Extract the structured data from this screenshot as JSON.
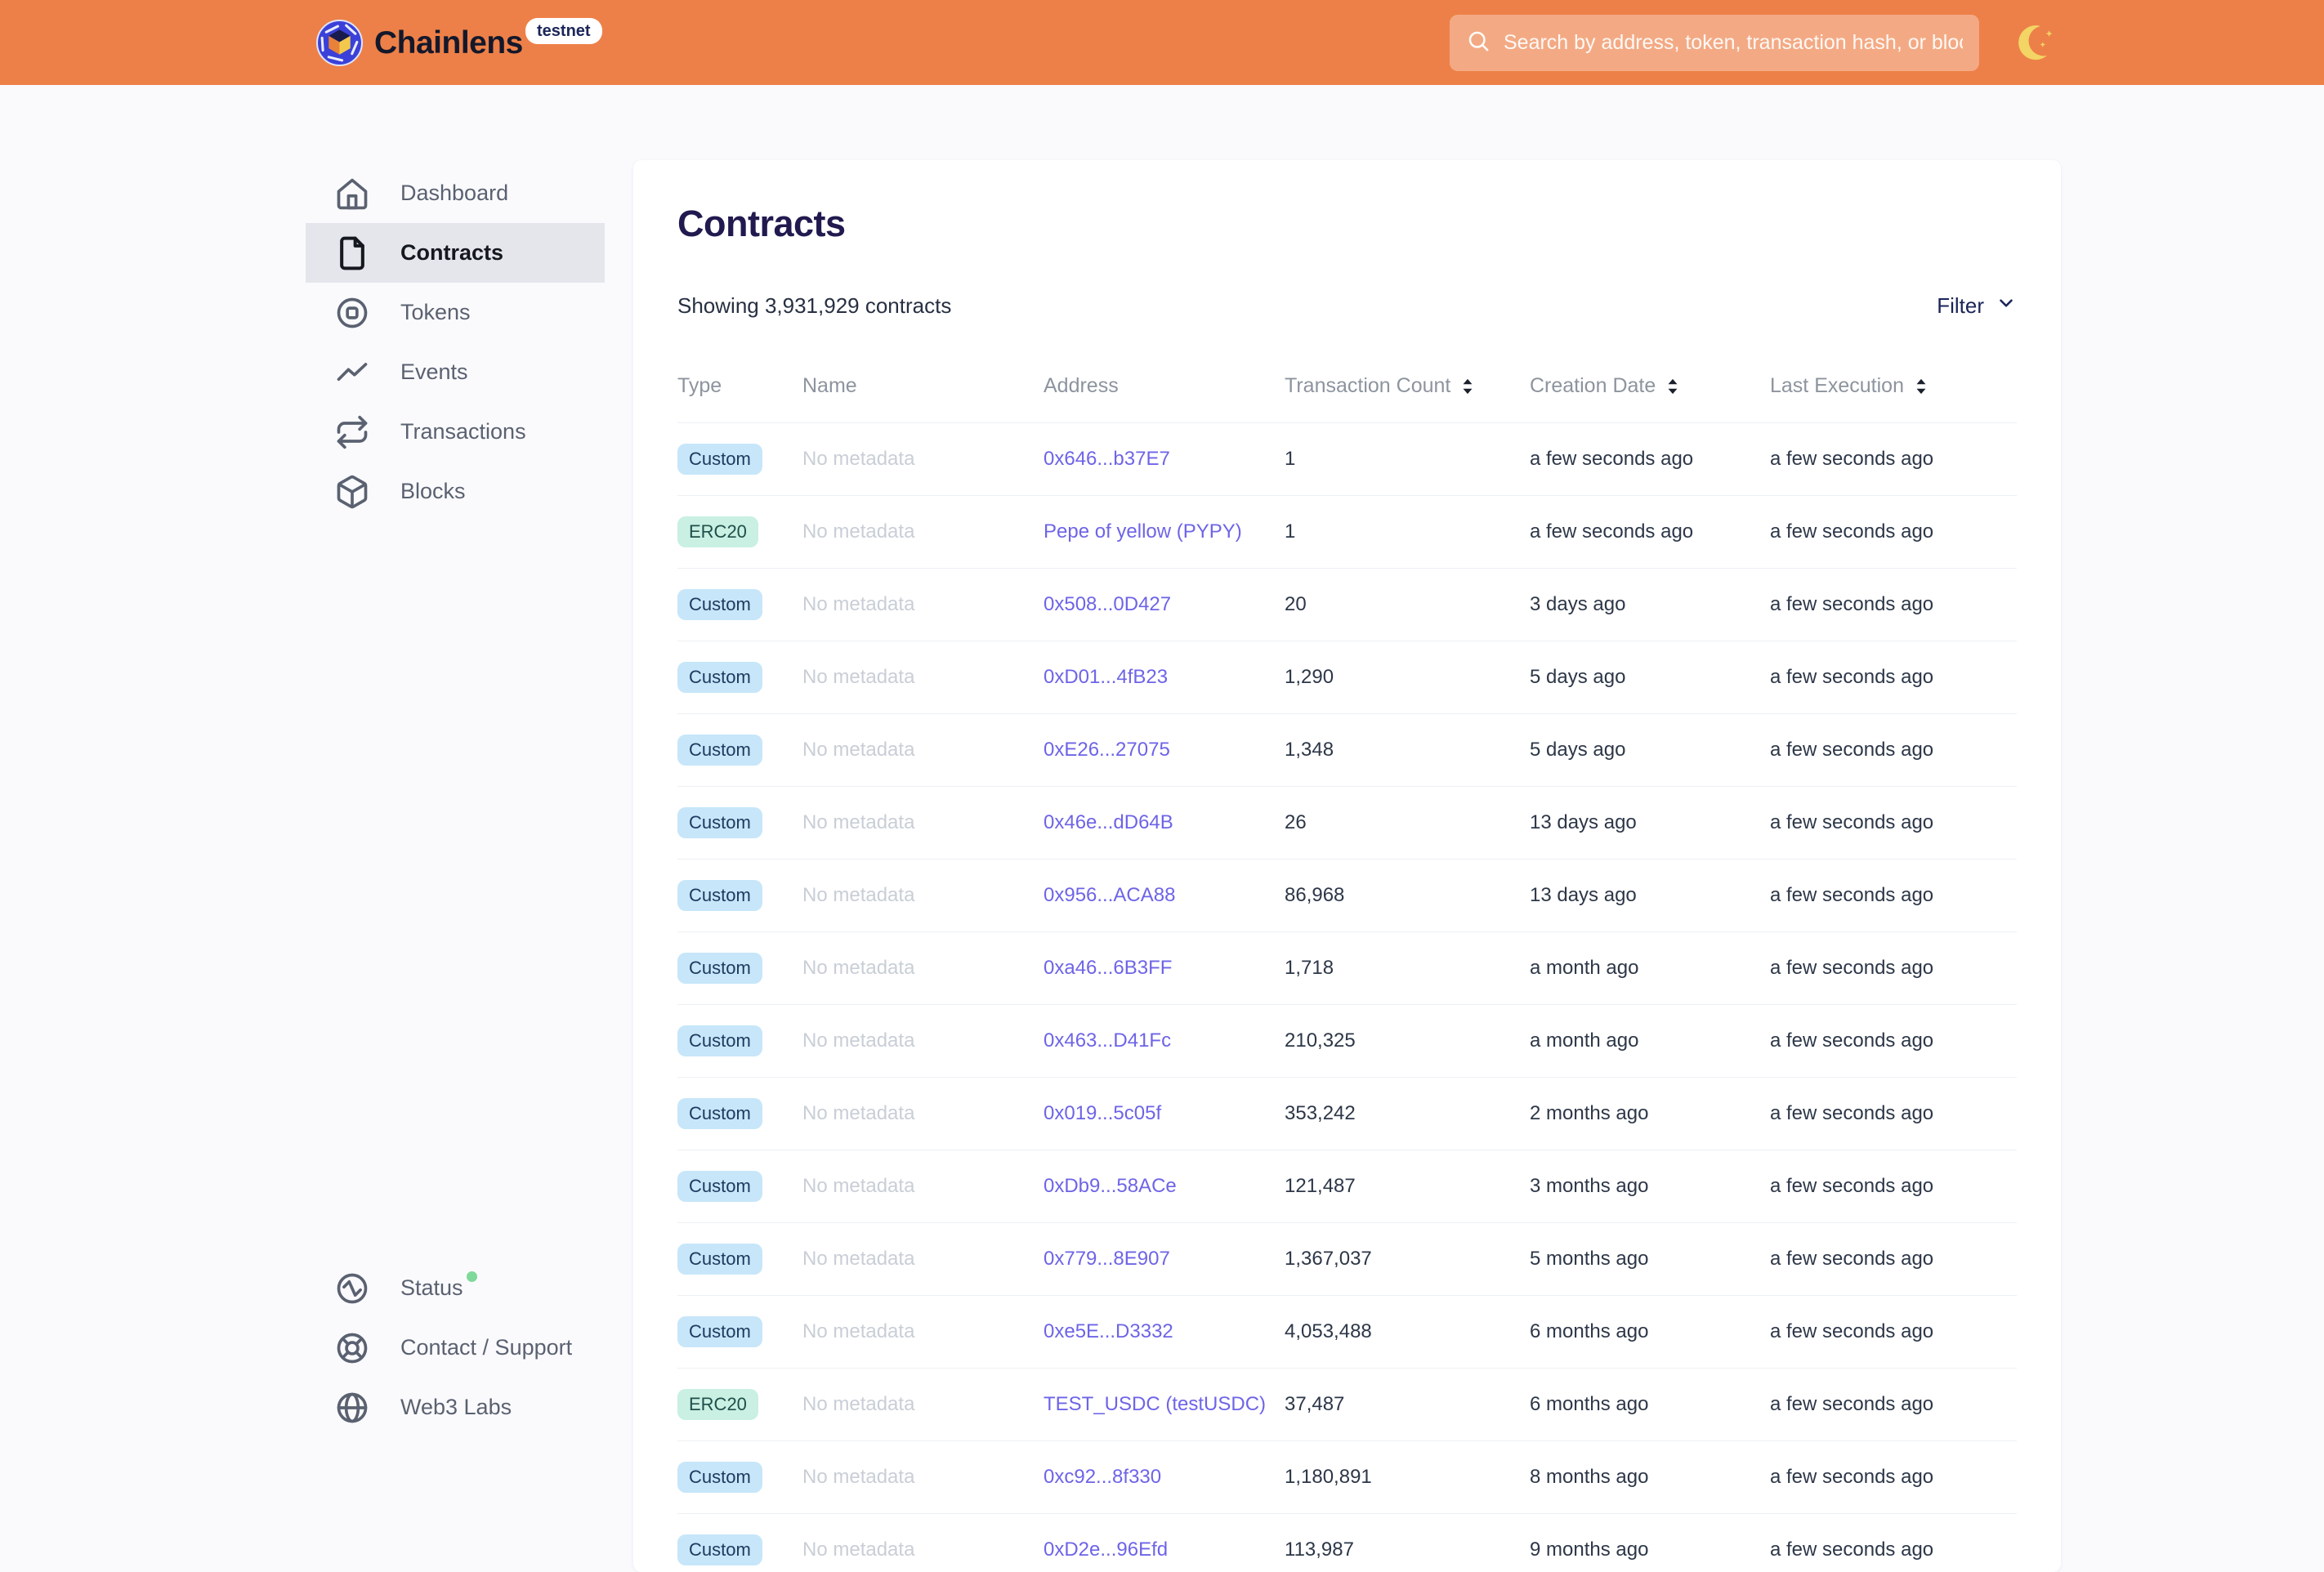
{
  "header": {
    "brand": "Chainlens",
    "network_badge": "testnet",
    "search_placeholder": "Search by address, token, transaction hash, or block number"
  },
  "sidebar": {
    "items": [
      {
        "label": "Dashboard",
        "icon": "home-icon",
        "active": false
      },
      {
        "label": "Contracts",
        "icon": "document-icon",
        "active": true
      },
      {
        "label": "Tokens",
        "icon": "token-icon",
        "active": false
      },
      {
        "label": "Events",
        "icon": "activity-icon",
        "active": false
      },
      {
        "label": "Transactions",
        "icon": "repeat-icon",
        "active": false
      },
      {
        "label": "Blocks",
        "icon": "cube-icon",
        "active": false
      }
    ],
    "footer_items": [
      {
        "label": "Status",
        "icon": "pulse-circle-icon",
        "has_status_dot": true
      },
      {
        "label": "Contact / Support",
        "icon": "life-buoy-icon",
        "has_status_dot": false
      },
      {
        "label": "Web3 Labs",
        "icon": "globe-icon",
        "has_status_dot": false
      }
    ]
  },
  "main": {
    "title": "Contracts",
    "summary": "Showing 3,931,929 contracts",
    "filter_label": "Filter",
    "table": {
      "columns": [
        {
          "label": "Type",
          "sortable": false
        },
        {
          "label": "Name",
          "sortable": false
        },
        {
          "label": "Address",
          "sortable": false
        },
        {
          "label": "Transaction Count",
          "sortable": true
        },
        {
          "label": "Creation Date",
          "sortable": true
        },
        {
          "label": "Last Execution",
          "sortable": true
        }
      ],
      "rows": [
        {
          "type": "Custom",
          "name": "No metadata",
          "address": "0x646...b37E7",
          "tx_count": "1",
          "created": "a few seconds ago",
          "last_exec": "a few seconds ago"
        },
        {
          "type": "ERC20",
          "name": "No metadata",
          "address": "Pepe of yellow (PYPY)",
          "tx_count": "1",
          "created": "a few seconds ago",
          "last_exec": "a few seconds ago"
        },
        {
          "type": "Custom",
          "name": "No metadata",
          "address": "0x508...0D427",
          "tx_count": "20",
          "created": "3 days ago",
          "last_exec": "a few seconds ago"
        },
        {
          "type": "Custom",
          "name": "No metadata",
          "address": "0xD01...4fB23",
          "tx_count": "1,290",
          "created": "5 days ago",
          "last_exec": "a few seconds ago"
        },
        {
          "type": "Custom",
          "name": "No metadata",
          "address": "0xE26...27075",
          "tx_count": "1,348",
          "created": "5 days ago",
          "last_exec": "a few seconds ago"
        },
        {
          "type": "Custom",
          "name": "No metadata",
          "address": "0x46e...dD64B",
          "tx_count": "26",
          "created": "13 days ago",
          "last_exec": "a few seconds ago"
        },
        {
          "type": "Custom",
          "name": "No metadata",
          "address": "0x956...ACA88",
          "tx_count": "86,968",
          "created": "13 days ago",
          "last_exec": "a few seconds ago"
        },
        {
          "type": "Custom",
          "name": "No metadata",
          "address": "0xa46...6B3FF",
          "tx_count": "1,718",
          "created": "a month ago",
          "last_exec": "a few seconds ago"
        },
        {
          "type": "Custom",
          "name": "No metadata",
          "address": "0x463...D41Fc",
          "tx_count": "210,325",
          "created": "a month ago",
          "last_exec": "a few seconds ago"
        },
        {
          "type": "Custom",
          "name": "No metadata",
          "address": "0x019...5c05f",
          "tx_count": "353,242",
          "created": "2 months ago",
          "last_exec": "a few seconds ago"
        },
        {
          "type": "Custom",
          "name": "No metadata",
          "address": "0xDb9...58ACe",
          "tx_count": "121,487",
          "created": "3 months ago",
          "last_exec": "a few seconds ago"
        },
        {
          "type": "Custom",
          "name": "No metadata",
          "address": "0x779...8E907",
          "tx_count": "1,367,037",
          "created": "5 months ago",
          "last_exec": "a few seconds ago"
        },
        {
          "type": "Custom",
          "name": "No metadata",
          "address": "0xe5E...D3332",
          "tx_count": "4,053,488",
          "created": "6 months ago",
          "last_exec": "a few seconds ago"
        },
        {
          "type": "ERC20",
          "name": "No metadata",
          "address": "TEST_USDC (testUSDC)",
          "tx_count": "37,487",
          "created": "6 months ago",
          "last_exec": "a few seconds ago"
        },
        {
          "type": "Custom",
          "name": "No metadata",
          "address": "0xc92...8f330",
          "tx_count": "1,180,891",
          "created": "8 months ago",
          "last_exec": "a few seconds ago"
        },
        {
          "type": "Custom",
          "name": "No metadata",
          "address": "0xD2e...96Efd",
          "tx_count": "113,987",
          "created": "9 months ago",
          "last_exec": "a few seconds ago"
        }
      ]
    }
  },
  "colors": {
    "header_bg": "#ED8048",
    "page_bg": "#FAFAFD",
    "title": "#201A4F",
    "link": "#6E64E7",
    "status_dot": "#7ED99A",
    "badge_styles": {
      "Custom": {
        "bg": "#C7E6F9",
        "fg": "#1C3A5E"
      },
      "ERC20": {
        "bg": "#C9F0E2",
        "fg": "#1F4F4A"
      }
    }
  }
}
